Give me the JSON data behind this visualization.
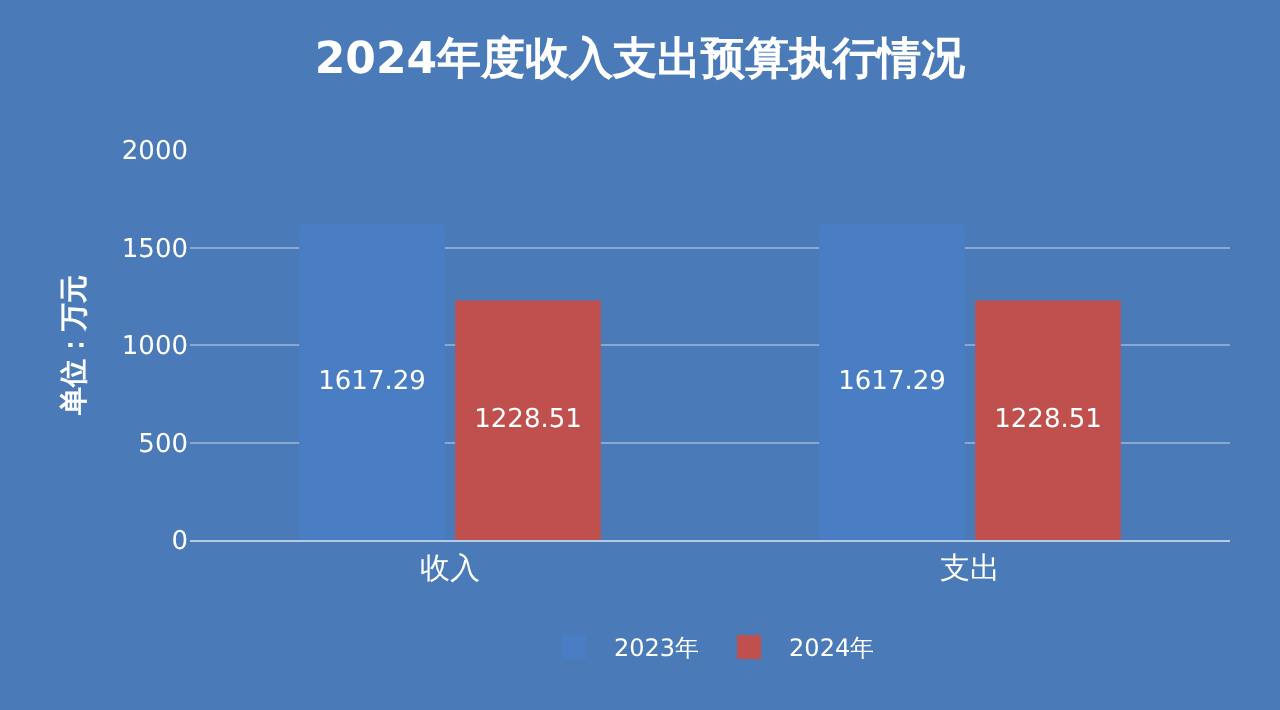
{
  "chart_data": {
    "type": "bar",
    "title": "2024年度收入支出预算执行情况",
    "ylabel": "单位：万元",
    "categories": [
      "收入",
      "支出"
    ],
    "series": [
      {
        "name": "2023年",
        "color": "#4a7ec4",
        "values": [
          1617.29,
          1617.29
        ]
      },
      {
        "name": "2024年",
        "color": "#c0504d",
        "values": [
          1228.51,
          1228.51
        ]
      }
    ],
    "ylim": [
      0,
      2000
    ],
    "yticks": [
      0,
      500,
      1000,
      1500,
      2000
    ],
    "grid": "y",
    "legend": "bottom",
    "data_labels": true
  }
}
